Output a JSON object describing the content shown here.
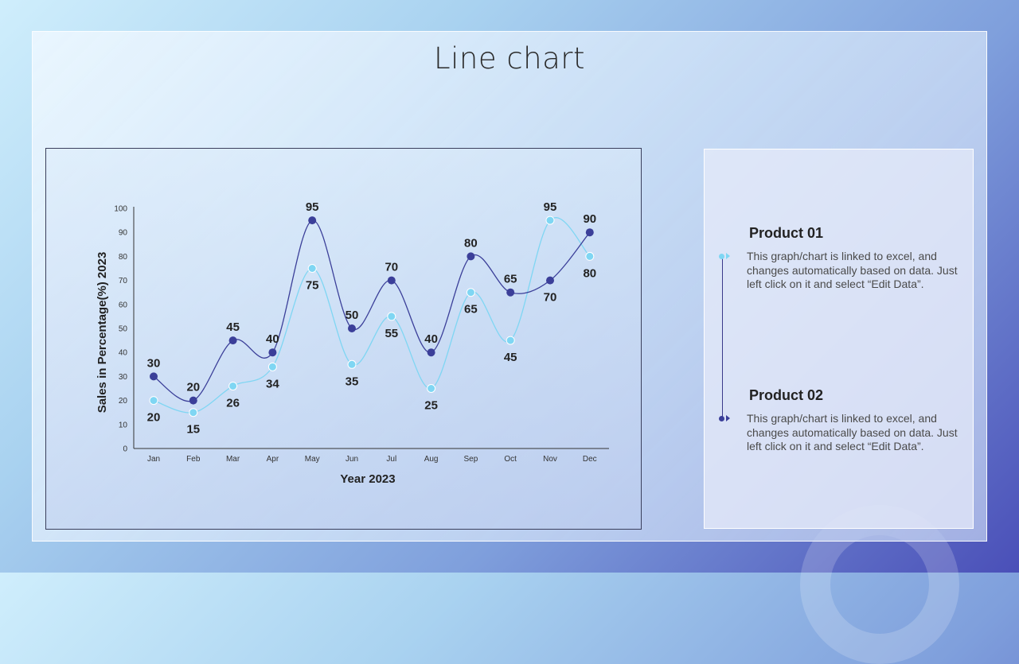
{
  "title": "Line chart",
  "colors": {
    "product01": "#7fd6f3",
    "product02": "#3b3f99"
  },
  "legend": [
    {
      "title": "Product 01",
      "description": "This graph/chart is linked to excel, and changes automatically based on data. Just left click on it and select “Edit Data”."
    },
    {
      "title": "Product 02",
      "description": "This graph/chart is linked to excel, and changes automatically based on data. Just left click on it and select “Edit Data”."
    }
  ],
  "chart_data": {
    "type": "line",
    "title": "",
    "xlabel": "Year 2023",
    "ylabel": "Sales in Percentage(%) 2023",
    "ylim": [
      0,
      100
    ],
    "yticks": [
      0,
      10,
      20,
      30,
      40,
      50,
      60,
      70,
      80,
      90,
      100
    ],
    "categories": [
      "Jan",
      "Feb",
      "Mar",
      "Apr",
      "May",
      "Jun",
      "Jul",
      "Aug",
      "Sep",
      "Oct",
      "Nov",
      "Dec"
    ],
    "grid": false,
    "series": [
      {
        "name": "Product 01",
        "color": "#7fd6f3",
        "values": [
          20,
          15,
          26,
          34,
          75,
          35,
          55,
          25,
          65,
          45,
          95,
          80
        ]
      },
      {
        "name": "Product 02",
        "color": "#3b3f99",
        "values": [
          30,
          20,
          45,
          40,
          95,
          50,
          70,
          40,
          80,
          65,
          70,
          90
        ]
      }
    ]
  }
}
